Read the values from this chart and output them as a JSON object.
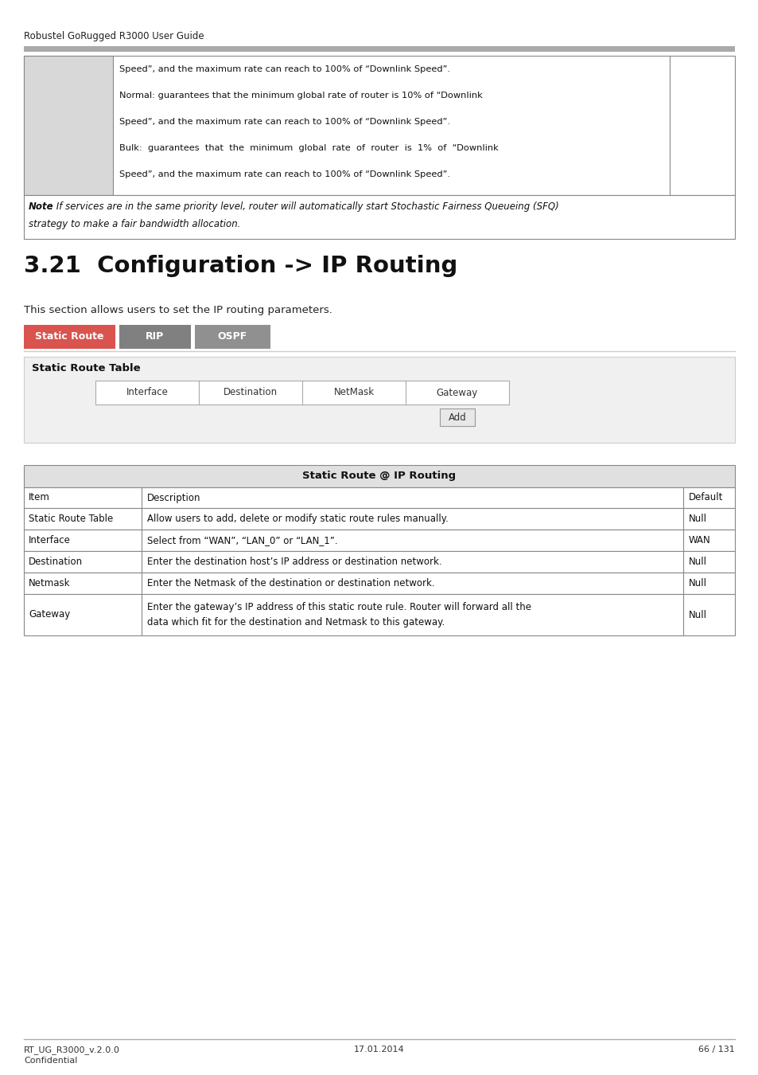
{
  "header_text": "Robustel GoRugged R3000 User Guide",
  "col2_lines": [
    "Speed”, and the maximum rate can reach to 100% of “Downlink Speed”.",
    "Normal: guarantees that the minimum global rate of router is 10% of “Downlink",
    "Speed”, and the maximum rate can reach to 100% of “Downlink Speed”.",
    "Bulk:  guarantees  that  the  minimum  global  rate  of  router  is  1%  of  “Downlink",
    "Speed”, and the maximum rate can reach to 100% of “Downlink Speed”."
  ],
  "note_bold": "Note",
  "note_text": ": If services are in the same priority level, router will automatically start Stochastic Fairness Queueing (SFQ)",
  "note_text2": "strategy to make a fair bandwidth allocation.",
  "section_title": "3.21  Configuration -> IP Routing",
  "section_desc": "This section allows users to set the IP routing parameters.",
  "tabs": [
    {
      "label": "Static Route",
      "bg": "#d9534f",
      "fg": "#ffffff"
    },
    {
      "label": "RIP",
      "bg": "#808080",
      "fg": "#ffffff"
    },
    {
      "label": "OSPF",
      "bg": "#909090",
      "fg": "#ffffff"
    }
  ],
  "static_route_title": "Static Route Table",
  "table_headers": [
    "Interface",
    "Destination",
    "NetMask",
    "Gateway"
  ],
  "add_button": "Add",
  "info_table_title": "Static Route @ IP Routing",
  "info_rows": [
    {
      "item": "Item",
      "desc": "Description",
      "default": "Default",
      "is_header": true
    },
    {
      "item": "Static Route Table",
      "desc": "Allow users to add, delete or modify static route rules manually.",
      "default": "Null",
      "is_header": false
    },
    {
      "item": "Interface",
      "desc": "Select from “WAN”, “LAN_0” or “LAN_1”.",
      "default": "WAN",
      "is_header": false
    },
    {
      "item": "Destination",
      "desc": "Enter the destination host’s IP address or destination network.",
      "default": "Null",
      "is_header": false
    },
    {
      "item": "Netmask",
      "desc": "Enter the Netmask of the destination or destination network.",
      "default": "Null",
      "is_header": false
    },
    {
      "item": "Gateway",
      "desc": "Enter the gateway’s IP address of this static route rule. Router will forward all the",
      "desc2": "data which fit for the destination and Netmask to this gateway.",
      "default": "Null",
      "is_header": false
    }
  ],
  "footer_left1": "RT_UG_R3000_v.2.0.0",
  "footer_left2": "Confidential",
  "footer_center": "17.01.2014",
  "footer_right": "66 / 131"
}
